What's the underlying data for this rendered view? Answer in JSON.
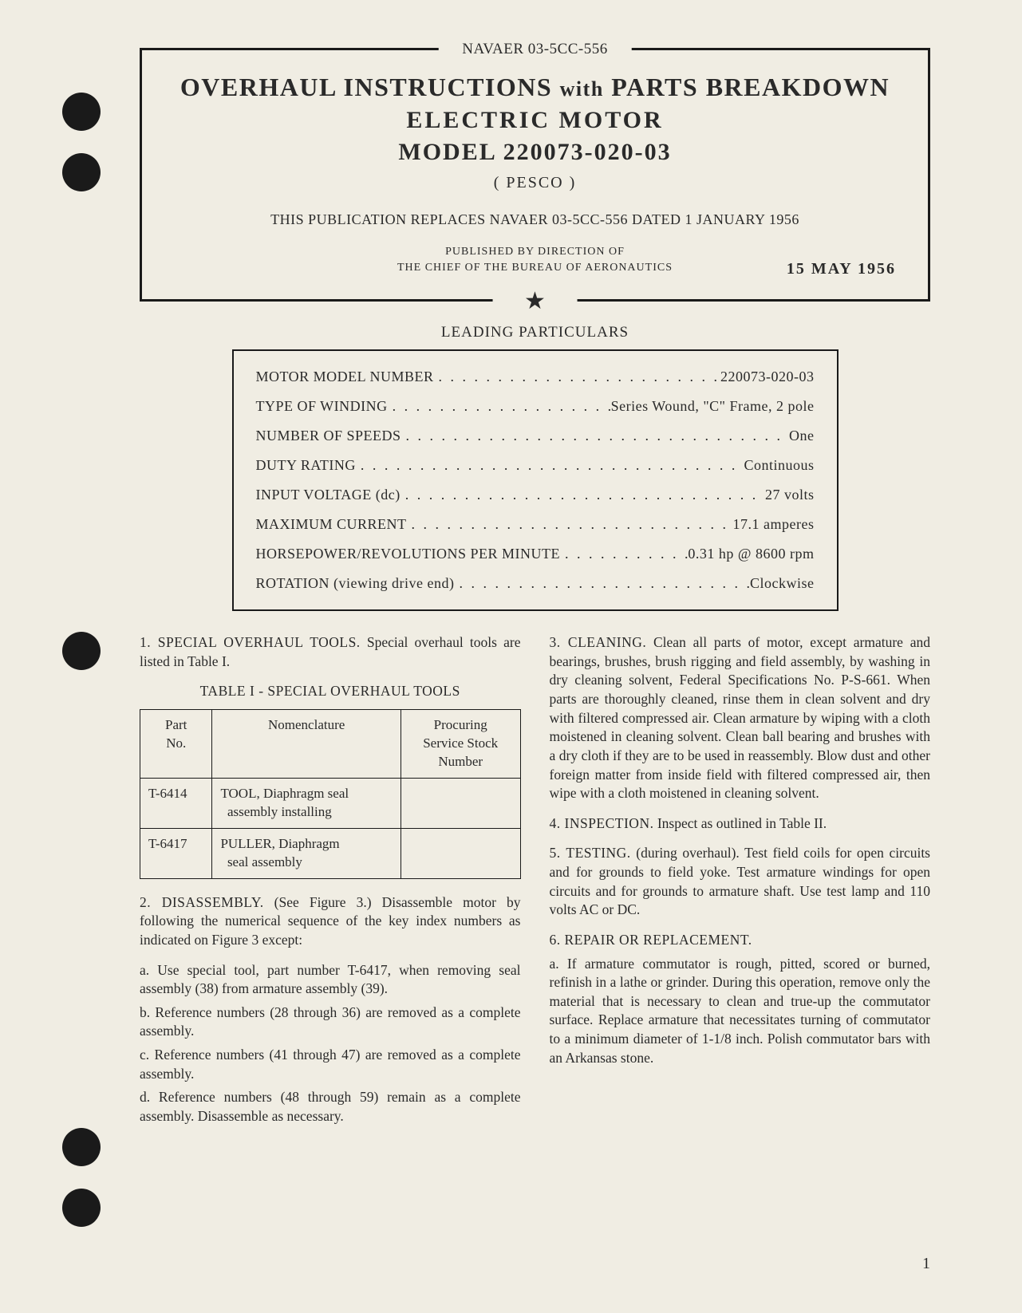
{
  "doc_id": "NAVAER 03-5CC-556",
  "header": {
    "title_line1_a": "OVERHAUL INSTRUCTIONS",
    "title_line1_with": "with",
    "title_line1_b": "PARTS BREAKDOWN",
    "title_line2": "ELECTRIC  MOTOR",
    "title_line3": "MODEL  220073-020-03",
    "mfr": "( PESCO )",
    "replaces": "THIS PUBLICATION REPLACES NAVAER 03-5CC-556 DATED 1 JANUARY 1956",
    "pub_by_1": "PUBLISHED BY DIRECTION OF",
    "pub_by_2": "THE CHIEF OF THE BUREAU OF AERONAUTICS",
    "date": "15 MAY 1956"
  },
  "particulars_title": "LEADING PARTICULARS",
  "particulars": [
    {
      "label": "MOTOR MODEL NUMBER",
      "value": "220073-020-03"
    },
    {
      "label": "TYPE OF WINDING",
      "value": "Series Wound, \"C\" Frame, 2 pole"
    },
    {
      "label": "NUMBER OF SPEEDS",
      "value": "One"
    },
    {
      "label": "DUTY RATING",
      "value": "Continuous"
    },
    {
      "label": "INPUT VOLTAGE (dc)",
      "value": "27 volts"
    },
    {
      "label": "MAXIMUM CURRENT",
      "value": "17.1 amperes"
    },
    {
      "label": "HORSEPOWER/REVOLUTIONS PER MINUTE",
      "value": "0.31 hp @ 8600 rpm"
    },
    {
      "label": "ROTATION (viewing drive end)",
      "value": "Clockwise"
    }
  ],
  "sections": {
    "s1_head": "1. SPECIAL OVERHAUL TOOLS.",
    "s1_body": " Special overhaul tools are listed in Table I.",
    "table1_title": "TABLE I - SPECIAL OVERHAUL TOOLS",
    "table1": {
      "columns": [
        "Part\nNo.",
        "Nomenclature",
        "Procuring\nService Stock\nNumber"
      ],
      "rows": [
        [
          "T-6414",
          "TOOL, Diaphragm seal\n  assembly installing",
          ""
        ],
        [
          "T-6417",
          "PULLER, Diaphragm\n  seal assembly",
          ""
        ]
      ]
    },
    "s2_head": "2. DISASSEMBLY.",
    "s2_body": " (See Figure 3.) Disassemble motor by following the numerical sequence of the key index numbers as indicated on Figure 3 except:",
    "s2a": "a. Use special tool, part number T-6417, when removing seal assembly (38) from armature assembly (39).",
    "s2b": "b. Reference numbers (28 through 36) are removed as a complete assembly.",
    "s2c": "c. Reference numbers (41 through 47) are removed as a complete assembly.",
    "s2d": "d. Reference numbers (48 through 59) remain as a complete assembly. Disassemble as necessary.",
    "s3_head": "3. CLEANING.",
    "s3_body": " Clean all parts of motor, except armature and bearings, brushes, brush rigging and field assembly, by washing in dry cleaning solvent, Federal Specifications No. P-S-661. When parts are thoroughly cleaned, rinse them in clean solvent and dry with filtered compressed air. Clean armature by wiping with a cloth moistened in cleaning solvent. Clean ball bearing and brushes with a dry cloth if they are to be used in reassembly. Blow dust and other foreign matter from inside field with filtered compressed air, then wipe with a cloth moistened in cleaning solvent.",
    "s4_head": "4. INSPECTION.",
    "s4_body": " Inspect as outlined in Table II.",
    "s5_head": "5. TESTING.",
    "s5_body": " (during overhaul). Test field coils for open circuits and for grounds to field yoke. Test armature windings for open circuits and for grounds to armature shaft. Use test lamp and 110 volts AC or DC.",
    "s6_head": "6. REPAIR OR REPLACEMENT.",
    "s6a": "a. If armature commutator is rough, pitted, scored or burned, refinish in a lathe or grinder. During this operation, remove only the material that is necessary to clean and true-up the commutator surface. Replace armature that necessitates turning of commutator to a minimum diameter of 1-1/8 inch. Polish commutator bars with an Arkansas stone."
  },
  "page_number": "1",
  "colors": {
    "paper": "#f0ede3",
    "ink": "#2a2a2a",
    "hole": "#1a1a1a"
  }
}
